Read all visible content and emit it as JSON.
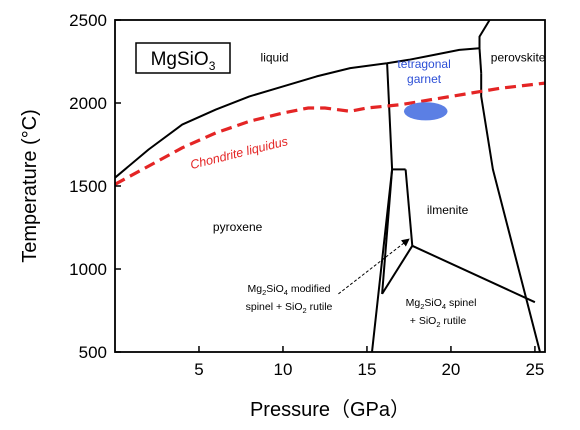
{
  "chart_data": {
    "type": "line",
    "title": "",
    "xlabel": "Pressure（GPa）",
    "ylabel": "Temperature (°C)",
    "xlim": [
      0,
      25.6
    ],
    "ylim": [
      500,
      2500
    ],
    "x_ticks": [
      5,
      10,
      15,
      20,
      25
    ],
    "y_ticks": [
      500,
      1000,
      1500,
      2000,
      2500
    ],
    "compound": {
      "base": "MgSiO",
      "sub": "3"
    },
    "colors": {
      "boundary": "#000000",
      "liquidus": "#e42525",
      "garnet_blob": "#5b7fe4",
      "garnet_text": "#2c4fd6"
    },
    "boundaries": [
      [
        [
          0,
          1550
        ],
        [
          2,
          1720
        ],
        [
          4,
          1870
        ],
        [
          6,
          1960
        ],
        [
          8,
          2040
        ],
        [
          10,
          2100
        ],
        [
          12,
          2160
        ],
        [
          14,
          2210
        ],
        [
          16.2,
          2240
        ],
        [
          17.5,
          2260
        ],
        [
          19,
          2290
        ],
        [
          20.5,
          2320
        ],
        [
          21.7,
          2330
        ]
      ],
      [
        [
          16.2,
          2240
        ],
        [
          16.5,
          1600
        ],
        [
          15.3,
          500
        ]
      ],
      [
        [
          16.5,
          1600
        ],
        [
          17.3,
          1600
        ]
      ],
      [
        [
          17.3,
          1600
        ],
        [
          17.7,
          1140
        ]
      ],
      [
        [
          16.5,
          1600
        ],
        [
          15.9,
          850
        ]
      ],
      [
        [
          15.9,
          850
        ],
        [
          17.7,
          1140
        ]
      ],
      [
        [
          17.7,
          1140
        ],
        [
          25.0,
          800
        ]
      ],
      [
        [
          21.8,
          2180
        ],
        [
          21.7,
          2330
        ]
      ],
      [
        [
          21.7,
          2330
        ],
        [
          21.7,
          2400
        ],
        [
          22.3,
          2500
        ]
      ],
      [
        [
          21.8,
          2180
        ],
        [
          21.8,
          2040
        ],
        [
          22.5,
          1600
        ],
        [
          25.3,
          500
        ]
      ]
    ],
    "chondrite_liquidus": [
      [
        0,
        1510
      ],
      [
        2,
        1620
      ],
      [
        4,
        1730
      ],
      [
        6,
        1820
      ],
      [
        8,
        1890
      ],
      [
        10,
        1940
      ],
      [
        11.5,
        1970
      ],
      [
        12.5,
        1970
      ],
      [
        14,
        1950
      ],
      [
        15,
        1970
      ],
      [
        17,
        1990
      ],
      [
        20,
        2040
      ],
      [
        23,
        2090
      ],
      [
        25.6,
        2120
      ]
    ],
    "garnet_region": {
      "x": 18.5,
      "y": 1950,
      "rx": 1.3,
      "ry": 55
    },
    "arrow": {
      "from": [
        13.3,
        850
      ],
      "to": [
        17.5,
        1180
      ]
    },
    "regions": [
      {
        "key": "liquid",
        "text": "liquid",
        "x": 9.5,
        "y": 2250
      },
      {
        "key": "perovskite",
        "text": "perovskite",
        "x": 24.0,
        "y": 2250
      },
      {
        "key": "ilmenite",
        "text": "ilmenite",
        "x": 19.8,
        "y": 1330
      },
      {
        "key": "pyroxene",
        "text": "pyroxene",
        "x": 7.3,
        "y": 1230
      }
    ],
    "tetragonal_garnet": {
      "line1": "tetragonal",
      "line2": "garnet",
      "x": 18.4,
      "y": 2210
    },
    "liquidus_label": "Chondrite liquidus",
    "modified_spinel_label": {
      "line1_prefix": "Mg",
      "line1_sub1": "2",
      "line1_mid": "SiO",
      "line1_sub2": "4",
      "line1_suffix": " modified",
      "line2_prefix": "spinel + SiO",
      "line2_sub": "2",
      "line2_suffix": " rutile"
    },
    "spinel_label": {
      "line1_prefix": "Mg",
      "line1_sub1": "2",
      "line1_mid": "SiO",
      "line1_sub2": "4",
      "line1_suffix": " spinel",
      "line2_prefix": "+ SiO",
      "line2_sub": "2",
      "line2_suffix": " rutile"
    }
  }
}
